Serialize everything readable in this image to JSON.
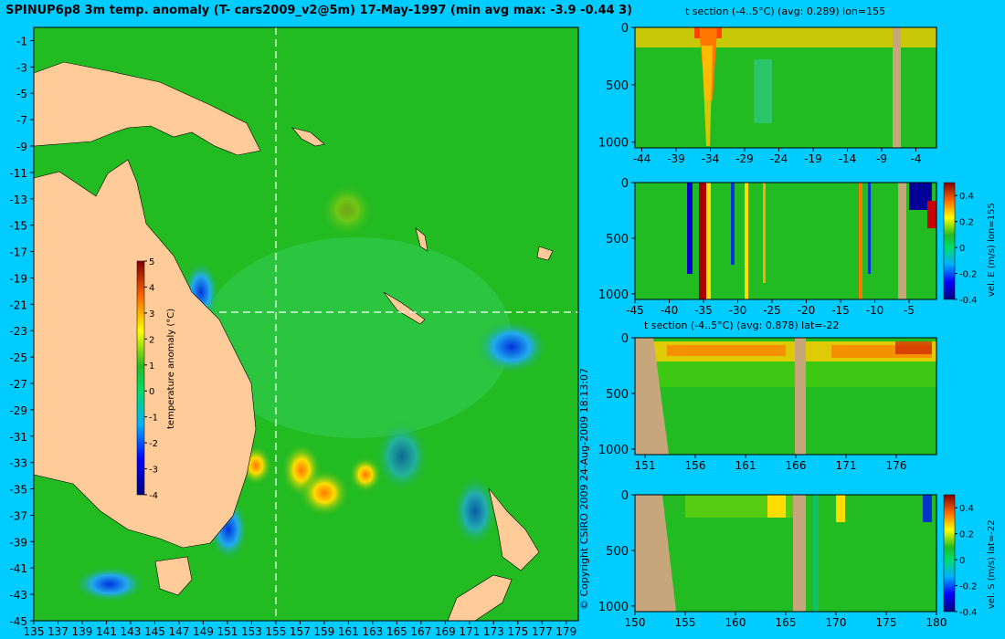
{
  "main_title": "SPINUP6p8 3m temp. anomaly (T- cars2009_v2@5m) 17-May-1997 (min avg max: -3.9 -0.44 3)",
  "copyright": "© Copyright CSIRO 2009   24-Aug-2009 18:13:07",
  "colors": {
    "background": "#00ccff",
    "land": "#ffcc99",
    "section_land": "#c8a67c",
    "ocean_base": "#22bb22"
  },
  "chart_data": [
    {
      "id": "map",
      "type": "heatmap",
      "title": "SPINUP6p8 3m temp. anomaly (T- cars2009_v2@5m) 17-May-1997 (min avg max: -3.9 -0.44 3)",
      "x_ticks": [
        "135",
        "137",
        "139",
        "141",
        "143",
        "145",
        "147",
        "149",
        "151",
        "153",
        "155",
        "157",
        "159",
        "161",
        "163",
        "165",
        "167",
        "169",
        "171",
        "173",
        "175",
        "177",
        "179"
      ],
      "y_ticks": [
        "-1",
        "-3",
        "-5",
        "-7",
        "-9",
        "-11",
        "-13",
        "-15",
        "-17",
        "-19",
        "-21",
        "-23",
        "-25",
        "-27",
        "-29",
        "-31",
        "-33",
        "-35",
        "-37",
        "-39",
        "-41",
        "-43",
        "-45"
      ],
      "xlim": [
        135,
        180
      ],
      "ylim": [
        -45,
        0
      ],
      "section_lon": 155,
      "section_lat": -22,
      "colorbar": {
        "label": "temperature anomaly (°C)",
        "range": [
          -4,
          5
        ],
        "ticks": [
          "5",
          "4",
          "3",
          "2",
          "1",
          "0",
          "-1",
          "-2",
          "-3",
          "-4"
        ]
      }
    },
    {
      "id": "t_lon",
      "type": "heatmap",
      "title": "t section (-4..5°C) (avg: 0.289) lon=155",
      "x_ticks": [
        "-44",
        "-39",
        "-34",
        "-29",
        "-24",
        "-19",
        "-14",
        "-9",
        "-4"
      ],
      "y_ticks": [
        "0",
        "500",
        "1000"
      ],
      "xlim": [
        -45,
        -1
      ],
      "ylim": [
        1050,
        0
      ]
    },
    {
      "id": "u_lon",
      "type": "heatmap",
      "title": "",
      "x_ticks": [
        "-45",
        "-40",
        "-35",
        "-30",
        "-25",
        "-20",
        "-15",
        "-10",
        "-5"
      ],
      "y_ticks": [
        "0",
        "500",
        "1000"
      ],
      "xlim": [
        -45,
        -1
      ],
      "ylim": [
        1050,
        0
      ],
      "colorbar": {
        "label": "vel. E (m/s) lon=155",
        "range": [
          -0.4,
          0.5
        ],
        "ticks": [
          "0.4",
          "0.2",
          "0",
          "-0.2",
          "-0.4"
        ]
      }
    },
    {
      "id": "t_lat",
      "type": "heatmap",
      "title": "t section (-4..5°C) (avg: 0.878) lat=-22",
      "x_ticks": [
        "151",
        "156",
        "161",
        "166",
        "171",
        "176"
      ],
      "y_ticks": [
        "0",
        "500",
        "1000"
      ],
      "xlim": [
        150,
        180
      ],
      "ylim": [
        1050,
        0
      ]
    },
    {
      "id": "v_lat",
      "type": "heatmap",
      "title": "",
      "x_ticks": [
        "150",
        "155",
        "160",
        "165",
        "170",
        "175",
        "180"
      ],
      "y_ticks": [
        "0",
        "500",
        "1000"
      ],
      "xlim": [
        150,
        180
      ],
      "ylim": [
        1050,
        0
      ],
      "colorbar": {
        "label": "vel. S (m/s) lat=-22",
        "range": [
          -0.4,
          0.5
        ],
        "ticks": [
          "0.4",
          "0.2",
          "0",
          "-0.2",
          "-0.4"
        ]
      }
    }
  ]
}
